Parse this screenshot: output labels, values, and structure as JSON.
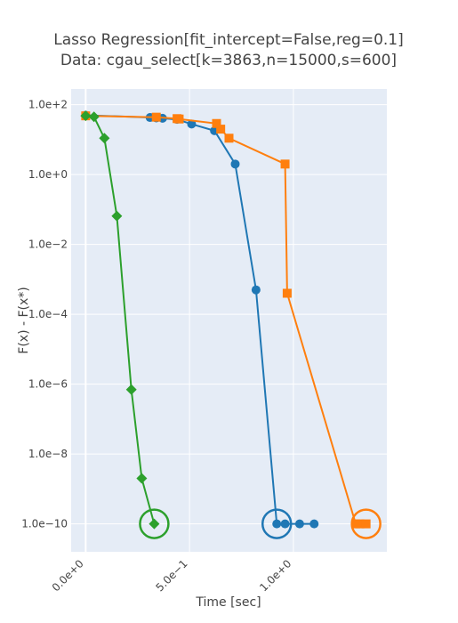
{
  "chart_data": {
    "type": "line",
    "title": [
      "Lasso Regression[fit_intercept=False,reg=0.1]",
      "Data: cgau_select[k=3863,n=15000,s=600]"
    ],
    "xlabel": "Time [sec]",
    "ylabel": "F(x) - F(x*)",
    "x_scale": "linear",
    "y_scale": "log",
    "xlim": [
      -0.07,
      1.45
    ],
    "ylim_log10": [
      -10.8,
      2.45
    ],
    "x_ticks": [
      0,
      0.5,
      1.0
    ],
    "x_tick_labels": [
      "0.0e+0",
      "5.0e−1",
      "1.0e+0"
    ],
    "y_ticks_log10": [
      2,
      0,
      -2,
      -4,
      -6,
      -8,
      -10
    ],
    "y_tick_labels": [
      "1.0e+2",
      "1.0e+0",
      "1.0e−2",
      "1.0e−4",
      "1.0e−6",
      "1.0e−8",
      "1.0e−10"
    ],
    "grid": true,
    "series": [
      {
        "color": "#1f77b4",
        "marker": "circle",
        "x": [
          0.0,
          0.31,
          0.34,
          0.37,
          0.44,
          0.51,
          0.62,
          0.72,
          0.82,
          0.92,
          0.96,
          1.03,
          1.1
        ],
        "y": [
          50,
          43,
          42,
          41,
          38,
          28,
          18,
          2.0,
          0.0005,
          1e-10,
          1e-10,
          1e-10,
          1e-10
        ],
        "final_marker_circled": true
      },
      {
        "color": "#ff7f0e",
        "marker": "square",
        "x": [
          0.0,
          0.34,
          0.44,
          0.45,
          0.63,
          0.65,
          0.69,
          0.96,
          0.97,
          1.3,
          1.32,
          1.35
        ],
        "y": [
          48,
          44,
          40,
          39,
          29,
          20,
          11,
          2.0,
          0.0004,
          1e-10,
          1e-10,
          1e-10
        ],
        "final_marker_circled": true
      },
      {
        "color": "#2ca02c",
        "marker": "diamond",
        "x": [
          0.0,
          0.04,
          0.09,
          0.15,
          0.22,
          0.27,
          0.33
        ],
        "y": [
          48,
          45,
          11,
          0.065,
          7e-07,
          2e-09,
          1e-10
        ],
        "final_marker_circled": true
      }
    ]
  }
}
